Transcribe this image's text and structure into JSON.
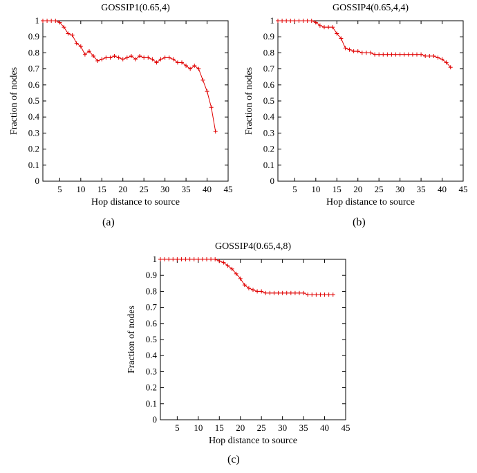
{
  "chart_data": [
    {
      "type": "line",
      "title": "GOSSIP1(0.65,4)",
      "xlabel": "Hop distance to source",
      "ylabel": "Fraction of nodes",
      "caption": "(a)",
      "xlim": [
        1,
        45
      ],
      "ylim": [
        0,
        1
      ],
      "xticks": [
        5,
        10,
        15,
        20,
        25,
        30,
        35,
        40,
        45
      ],
      "yticks": [
        0,
        0.1,
        0.2,
        0.3,
        0.4,
        0.5,
        0.6,
        0.7,
        0.8,
        0.9,
        1
      ],
      "grid": false,
      "color": "#e00000",
      "marker": "+",
      "x": [
        1,
        2,
        3,
        4,
        5,
        6,
        7,
        8,
        9,
        10,
        11,
        12,
        13,
        14,
        15,
        16,
        17,
        18,
        19,
        20,
        21,
        22,
        23,
        24,
        25,
        26,
        27,
        28,
        29,
        30,
        31,
        32,
        33,
        34,
        35,
        36,
        37,
        38,
        39,
        40,
        41,
        42
      ],
      "y": [
        1.0,
        1.0,
        1.0,
        1.0,
        0.99,
        0.96,
        0.92,
        0.91,
        0.86,
        0.84,
        0.79,
        0.81,
        0.78,
        0.75,
        0.76,
        0.77,
        0.77,
        0.78,
        0.77,
        0.76,
        0.77,
        0.78,
        0.76,
        0.78,
        0.77,
        0.77,
        0.76,
        0.74,
        0.76,
        0.77,
        0.77,
        0.76,
        0.74,
        0.74,
        0.72,
        0.7,
        0.72,
        0.7,
        0.63,
        0.56,
        0.46,
        0.31
      ]
    },
    {
      "type": "line",
      "title": "GOSSIP4(0.65,4,4)",
      "xlabel": "Hop distance to source",
      "ylabel": "Fraction of nodes",
      "caption": "(b)",
      "xlim": [
        1,
        45
      ],
      "ylim": [
        0,
        1
      ],
      "xticks": [
        5,
        10,
        15,
        20,
        25,
        30,
        35,
        40,
        45
      ],
      "yticks": [
        0,
        0.1,
        0.2,
        0.3,
        0.4,
        0.5,
        0.6,
        0.7,
        0.8,
        0.9,
        1
      ],
      "grid": false,
      "color": "#e00000",
      "marker": "+",
      "x": [
        1,
        2,
        3,
        4,
        5,
        6,
        7,
        8,
        9,
        10,
        11,
        12,
        13,
        14,
        15,
        16,
        17,
        18,
        19,
        20,
        21,
        22,
        23,
        24,
        25,
        26,
        27,
        28,
        29,
        30,
        31,
        32,
        33,
        34,
        35,
        36,
        37,
        38,
        39,
        40,
        41,
        42
      ],
      "y": [
        1.0,
        1.0,
        1.0,
        1.0,
        1.0,
        1.0,
        1.0,
        1.0,
        1.0,
        0.99,
        0.97,
        0.96,
        0.96,
        0.96,
        0.92,
        0.89,
        0.83,
        0.82,
        0.81,
        0.81,
        0.8,
        0.8,
        0.8,
        0.79,
        0.79,
        0.79,
        0.79,
        0.79,
        0.79,
        0.79,
        0.79,
        0.79,
        0.79,
        0.79,
        0.79,
        0.78,
        0.78,
        0.78,
        0.77,
        0.76,
        0.74,
        0.71
      ]
    },
    {
      "type": "line",
      "title": "GOSSIP4(0.65,4,8)",
      "xlabel": "Hop distance to source",
      "ylabel": "Fraction of nodes",
      "caption": "(c)",
      "xlim": [
        1,
        45
      ],
      "ylim": [
        0,
        1
      ],
      "xticks": [
        5,
        10,
        15,
        20,
        25,
        30,
        35,
        40,
        45
      ],
      "yticks": [
        0,
        0.1,
        0.2,
        0.3,
        0.4,
        0.5,
        0.6,
        0.7,
        0.8,
        0.9,
        1
      ],
      "grid": false,
      "color": "#e00000",
      "marker": "+",
      "x": [
        1,
        2,
        3,
        4,
        5,
        6,
        7,
        8,
        9,
        10,
        11,
        12,
        13,
        14,
        15,
        16,
        17,
        18,
        19,
        20,
        21,
        22,
        23,
        24,
        25,
        26,
        27,
        28,
        29,
        30,
        31,
        32,
        33,
        34,
        35,
        36,
        37,
        38,
        39,
        40,
        41,
        42
      ],
      "y": [
        1.0,
        1.0,
        1.0,
        1.0,
        1.0,
        1.0,
        1.0,
        1.0,
        1.0,
        1.0,
        1.0,
        1.0,
        1.0,
        1.0,
        0.99,
        0.98,
        0.96,
        0.94,
        0.91,
        0.88,
        0.84,
        0.82,
        0.81,
        0.8,
        0.8,
        0.79,
        0.79,
        0.79,
        0.79,
        0.79,
        0.79,
        0.79,
        0.79,
        0.79,
        0.79,
        0.78,
        0.78,
        0.78,
        0.78,
        0.78,
        0.78,
        0.78
      ]
    }
  ]
}
